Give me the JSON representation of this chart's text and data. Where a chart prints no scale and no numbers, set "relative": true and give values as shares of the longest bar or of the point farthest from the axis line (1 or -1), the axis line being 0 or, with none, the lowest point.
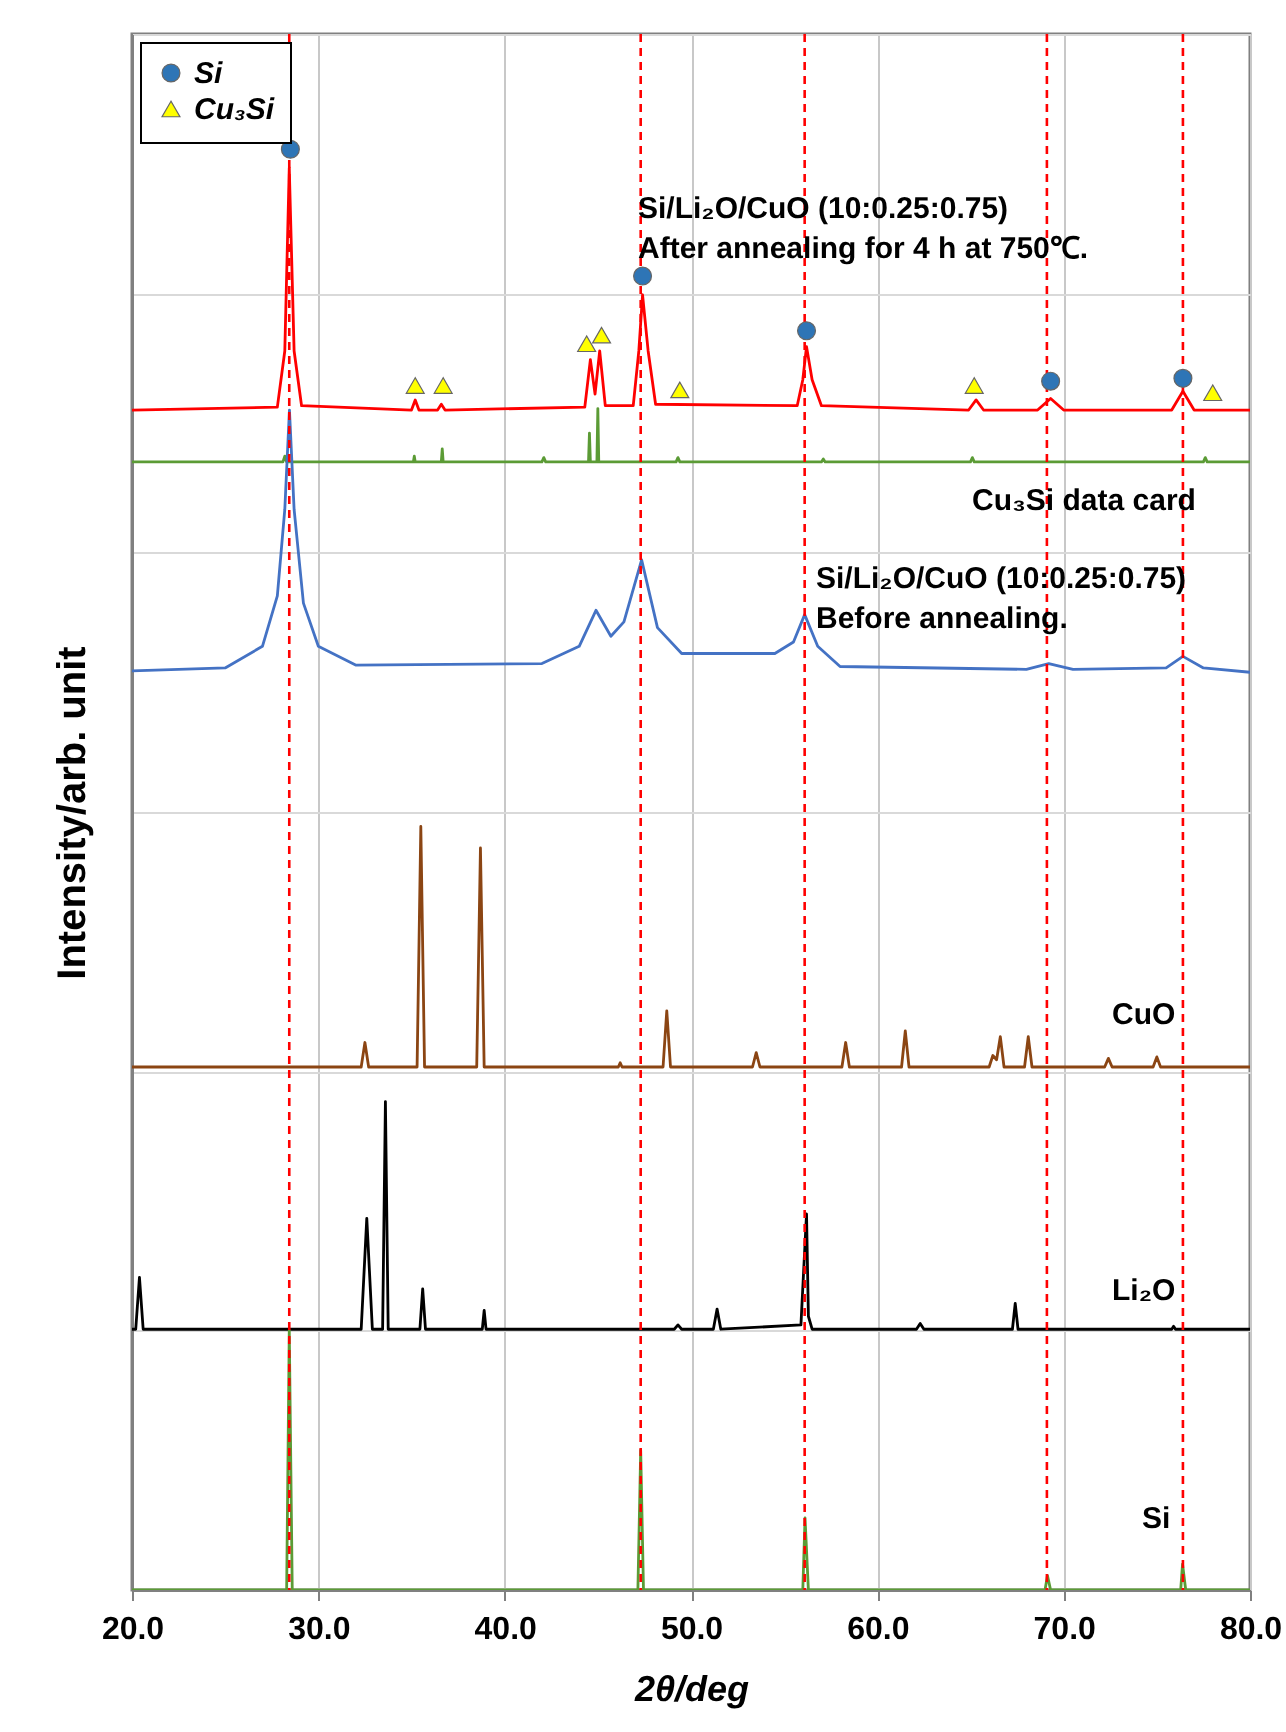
{
  "chart_data": {
    "type": "line",
    "xlabel": "2θ/deg",
    "ylabel": "Intensity/arb. unit",
    "relative": true,
    "grid": true,
    "legend": "top left",
    "line_style": "solid",
    "xlim": [
      20,
      80
    ],
    "xticks": [
      {
        "value": 20,
        "label": "20.0"
      },
      {
        "value": 30,
        "label": "30.0"
      },
      {
        "value": 40,
        "label": "40.0"
      },
      {
        "value": 50,
        "label": "50.0"
      },
      {
        "value": 60,
        "label": "60.0"
      },
      {
        "value": 70,
        "label": "70.0"
      },
      {
        "value": 80,
        "label": "80.0"
      }
    ],
    "series": [
      {
        "color": "#ff0000",
        "x": [
          20,
          27.8,
          28.2,
          28.44,
          28.7,
          29.1,
          35.0,
          35.2,
          35.4,
          36.4,
          36.6,
          36.8,
          44.3,
          44.6,
          44.85,
          45.1,
          45.4,
          46.9,
          47.2,
          47.4,
          47.7,
          48.1,
          55.7,
          56.0,
          56.2,
          56.5,
          57.0,
          64.9,
          65.3,
          65.7,
          68.6,
          69.3,
          70.0,
          75.8,
          76.4,
          77.0,
          80
        ],
        "values": [
          0.819,
          0.821,
          0.86,
          0.987,
          0.86,
          0.822,
          0.819,
          0.826,
          0.819,
          0.819,
          0.823,
          0.819,
          0.821,
          0.854,
          0.83,
          0.86,
          0.822,
          0.822,
          0.86,
          0.899,
          0.86,
          0.823,
          0.822,
          0.84,
          0.863,
          0.84,
          0.822,
          0.819,
          0.826,
          0.819,
          0.819,
          0.827,
          0.819,
          0.819,
          0.832,
          0.819,
          0.819
        ]
      },
      {
        "color": "#5b9b35",
        "x": [
          20,
          28.1,
          28.2,
          28.3,
          35.1,
          35.15,
          35.2,
          36.6,
          36.65,
          36.7,
          42.0,
          42.1,
          42.2,
          44.5,
          44.55,
          44.6,
          44.95,
          45.0,
          45.05,
          49.2,
          49.3,
          49.4,
          57.0,
          57.1,
          57.2,
          65.0,
          65.1,
          65.2,
          77.5,
          77.6,
          77.7,
          80
        ],
        "values": [
          0.783,
          0.783,
          0.787,
          0.783,
          0.783,
          0.787,
          0.783,
          0.783,
          0.792,
          0.783,
          0.783,
          0.786,
          0.783,
          0.783,
          0.803,
          0.783,
          0.783,
          0.82,
          0.783,
          0.783,
          0.786,
          0.783,
          0.783,
          0.785,
          0.783,
          0.783,
          0.786,
          0.783,
          0.783,
          0.786,
          0.783,
          0.783
        ]
      },
      {
        "color": "#4472c4",
        "x": [
          20,
          25,
          27,
          27.8,
          28.2,
          28.45,
          28.7,
          29.2,
          30,
          32,
          42,
          44.0,
          44.9,
          45.7,
          46.4,
          47.35,
          48.2,
          49.5,
          54.5,
          55.5,
          56.1,
          56.8,
          58,
          68,
          69.2,
          70.5,
          75.5,
          76.4,
          77.5,
          80
        ],
        "values": [
          0.638,
          0.64,
          0.655,
          0.69,
          0.75,
          0.819,
          0.75,
          0.685,
          0.655,
          0.642,
          0.643,
          0.655,
          0.68,
          0.662,
          0.672,
          0.715,
          0.668,
          0.65,
          0.65,
          0.658,
          0.677,
          0.655,
          0.641,
          0.639,
          0.643,
          0.639,
          0.64,
          0.648,
          0.64,
          0.637
        ]
      },
      {
        "color": "#8b4513",
        "x": [
          20,
          32.3,
          32.5,
          32.7,
          35.3,
          35.5,
          35.7,
          38.5,
          38.7,
          38.9,
          46.1,
          46.2,
          46.3,
          48.5,
          48.7,
          48.9,
          53.3,
          53.5,
          53.7,
          58.1,
          58.3,
          58.5,
          61.3,
          61.5,
          61.7,
          66.0,
          66.2,
          66.4,
          66.6,
          66.8,
          67.9,
          68.1,
          68.3,
          72.2,
          72.4,
          72.6,
          74.8,
          75.0,
          75.2,
          80
        ],
        "values": [
          0.363,
          0.363,
          0.38,
          0.363,
          0.363,
          0.53,
          0.363,
          0.363,
          0.515,
          0.363,
          0.363,
          0.366,
          0.363,
          0.363,
          0.402,
          0.363,
          0.363,
          0.373,
          0.363,
          0.363,
          0.38,
          0.363,
          0.363,
          0.388,
          0.363,
          0.363,
          0.371,
          0.368,
          0.384,
          0.363,
          0.363,
          0.384,
          0.363,
          0.363,
          0.369,
          0.363,
          0.363,
          0.37,
          0.363,
          0.363
        ]
      },
      {
        "color": "#000000",
        "x": [
          20,
          20.2,
          20.4,
          20.6,
          32.3,
          32.6,
          32.9,
          33.45,
          33.6,
          33.75,
          35.45,
          35.6,
          35.75,
          38.8,
          38.9,
          39.0,
          49.1,
          49.3,
          49.5,
          51.2,
          51.4,
          51.6,
          55.9,
          56.2,
          56.3,
          56.5,
          62.1,
          62.3,
          62.5,
          67.25,
          67.4,
          67.55,
          75.8,
          75.9,
          76.0,
          80
        ],
        "values": [
          0.181,
          0.181,
          0.217,
          0.181,
          0.181,
          0.258,
          0.181,
          0.181,
          0.339,
          0.181,
          0.181,
          0.209,
          0.181,
          0.181,
          0.194,
          0.181,
          0.181,
          0.184,
          0.181,
          0.181,
          0.195,
          0.181,
          0.184,
          0.261,
          0.19,
          0.181,
          0.181,
          0.185,
          0.181,
          0.181,
          0.199,
          0.181,
          0.181,
          0.183,
          0.181,
          0.181
        ]
      },
      {
        "color": "#5b9b35",
        "x": [
          20,
          28.3,
          28.44,
          28.6,
          47.15,
          47.3,
          47.45,
          56.0,
          56.12,
          56.3,
          69.0,
          69.13,
          69.3,
          76.28,
          76.38,
          76.55,
          80
        ],
        "values": [
          0,
          0,
          0.18,
          0,
          0,
          0.097,
          0,
          0,
          0.05,
          0,
          0,
          0.01,
          0,
          0,
          0.018,
          0,
          0
        ]
      },
      {
        "type": "scatter",
        "name": "Si",
        "marker": "circle",
        "color": "#2e75b6",
        "x": [
          28.5,
          47.4,
          56.2,
          69.3,
          76.4
        ],
        "values": [
          1.0,
          0.912,
          0.874,
          0.839,
          0.841
        ]
      },
      {
        "type": "scatter",
        "name": "Cu₃Si",
        "marker": "triangle",
        "color": "#ffff00",
        "x": [
          35.2,
          36.7,
          44.4,
          45.2,
          49.4,
          65.2,
          78.0
        ],
        "values": [
          0.836,
          0.836,
          0.865,
          0.871,
          0.833,
          0.836,
          0.831
        ]
      }
    ],
    "ref_lines": [
      {
        "axis": "x",
        "value": 28.44,
        "color": "#ff0000",
        "line_style": "dashed"
      },
      {
        "axis": "x",
        "value": 47.3,
        "color": "#ff0000",
        "line_style": "dashed"
      },
      {
        "axis": "x",
        "value": 56.1,
        "color": "#ff0000",
        "line_style": "dashed"
      },
      {
        "axis": "x",
        "value": 69.1,
        "color": "#ff0000",
        "line_style": "dashed"
      },
      {
        "axis": "x",
        "value": 76.4,
        "color": "#ff0000",
        "line_style": "dashed"
      }
    ],
    "annotations": [
      "Si/Li₂O/CuO (10:0.25:0.75)\nAfter annealing for 4 h at 750℃.",
      "Cu₃Si data card",
      "Si/Li₂O/CuO (10:0.25:0.75)\nBefore annealing.",
      "CuO",
      "Li₂O",
      "Si"
    ]
  }
}
